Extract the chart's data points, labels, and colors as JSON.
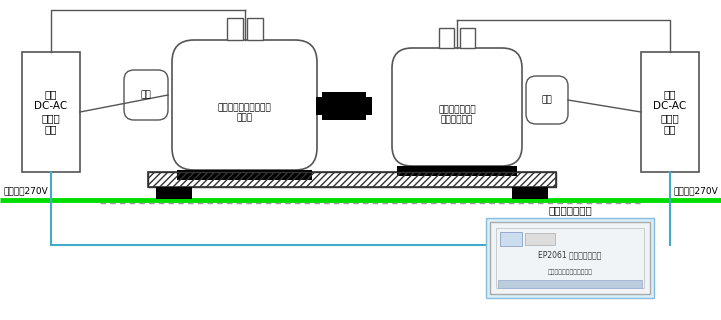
{
  "bg_color": "#ffffff",
  "green_line_color": "#00dd00",
  "blue_line_color": "#44aacc",
  "dashed_line_color": "#999999",
  "box_ec": "#555555",
  "left_driver_text": "双向\nDC-AC\n电机驱\n动器",
  "right_driver_text": "双向\nDC-AC\n电机驱\n动器",
  "left_motor_text": "三相永磁同步电机（驱\n动侧）",
  "right_motor_text": "三相永磁同步电\n机（发电侧）",
  "left_fan_text": "风扇",
  "right_fan_text": "风扇",
  "dc_bus_left_text": "直流母线270V",
  "dc_bus_right_text": "直流母线270V",
  "controller_label": "快速原型控制器",
  "controller_sub": "EP2061 快速原型控制器",
  "controller_sub2": "南京研旭电气科技有限公司"
}
